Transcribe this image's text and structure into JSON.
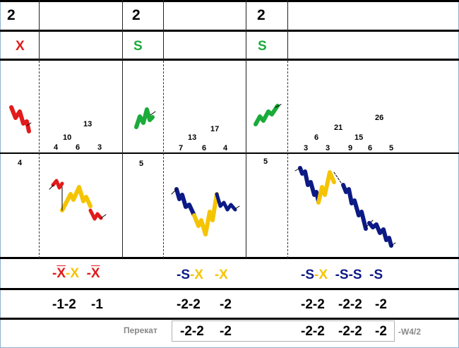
{
  "header": {
    "cols": [
      "2",
      "2",
      "2"
    ]
  },
  "letters": [
    "X",
    "S",
    "S"
  ],
  "counts_upper": {
    "g1": [
      "4",
      "10",
      "6",
      "13",
      "3"
    ],
    "g2": [
      "7",
      "13",
      "6",
      "17",
      "4"
    ],
    "g3": [
      "3",
      "6",
      "3",
      "21",
      "9",
      "15",
      "6",
      "26",
      "5"
    ]
  },
  "counts_lower": [
    "4",
    "5",
    "5"
  ],
  "labels": {
    "g1": [
      "-",
      "X",
      "-X",
      "-",
      "X"
    ],
    "g2": [
      "-S",
      "-X",
      "-X"
    ],
    "g3": [
      "-S",
      "-X",
      "-S",
      "-S",
      "-S"
    ]
  },
  "values": {
    "g1": [
      "-1-2",
      "-1"
    ],
    "g2": [
      "-2-2",
      "-2"
    ],
    "g3": [
      "-2-2",
      "-2-2",
      "-2"
    ]
  },
  "footer": {
    "label": "Перекат",
    "v1": "-2-2",
    "v2": "-2",
    "v3": "-2-2",
    "v4": "-2-2",
    "v5": "-2",
    "suffix": "-W4/2"
  },
  "colors": {
    "red": "#e11b1b",
    "green": "#1aab3a",
    "yellow": "#f5c400",
    "navy": "#0c1a86"
  }
}
